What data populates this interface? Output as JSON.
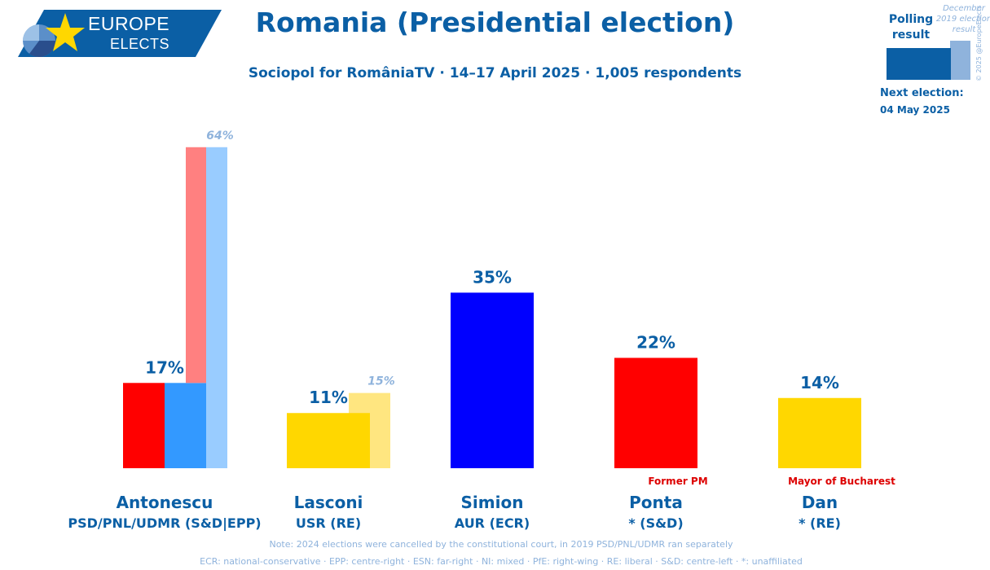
{
  "header": {
    "logo_line1": "EUROPE",
    "logo_line2": "ELECTS",
    "title": "Romania (Presidential election)",
    "subtitle": "Sociopol for RomâniaTV · 14–17 April 2025 · 1,005 respondents"
  },
  "legend": {
    "polling_label": "Polling result",
    "previous_label": "December 2019 election result",
    "copyright": "© 2025 @EuropeElects",
    "next_election_label": "Next election:",
    "next_election_date": "04 May 2025"
  },
  "footer": {
    "note": "Note: 2024 elections were cancelled by the constitutional court, in 2019 PSD/PNL/UDMR ran separately",
    "abbreviations": "ECR: national-conservative · EPP: centre-right · ESN: far-right · NI: mixed · PfE: right-wing · RE: liberal · S&D: centre-left · *: unaffiliated"
  },
  "colors": {
    "brand_blue": "#0b5fa5",
    "light_text": "#8fb3dc",
    "annotation_red": "#dd0000"
  },
  "chart_data": {
    "type": "bar",
    "ylim": [
      0,
      70
    ],
    "grid": false,
    "categories": [
      "Antonescu",
      "Lasconi",
      "Simion",
      "Ponta",
      "Dan"
    ],
    "parties": [
      "PSD/PNL/UDMR (S&D|EPP)",
      "USR (RE)",
      "AUR (ECR)",
      "* (S&D)",
      "* (RE)"
    ],
    "annotations": [
      "",
      "",
      "",
      "Former PM",
      "Mayor of Bucharest"
    ],
    "values": [
      17,
      11,
      35,
      22,
      14
    ],
    "value_labels": [
      "17%",
      "11%",
      "35%",
      "22%",
      "14%"
    ],
    "bar_colors": [
      [
        "#ff0000",
        "#3399ff"
      ],
      [
        "#ffd700"
      ],
      [
        "#0000ff"
      ],
      [
        "#ff0000"
      ],
      [
        "#ffd700"
      ]
    ],
    "previous": [
      {
        "category": "Antonescu",
        "values": [
          64,
          64
        ],
        "label": "64%",
        "colors": [
          "#ff8080",
          "#99ccff"
        ]
      },
      {
        "category": "Lasconi",
        "values": [
          15
        ],
        "label": "15%",
        "colors": [
          "#ffe680"
        ]
      }
    ]
  }
}
